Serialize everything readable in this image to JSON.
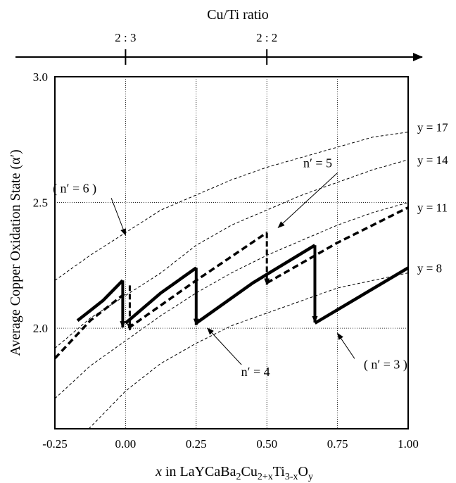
{
  "top_axis": {
    "title": "Cu/Ti ratio",
    "ticks": [
      {
        "x": 0.0,
        "label": "2 : 3"
      },
      {
        "x": 0.5,
        "label": "2 : 2"
      }
    ]
  },
  "chart_data": {
    "type": "line",
    "title": "",
    "ylabel": "Average Copper Oxidation State (α′)",
    "xlabel_parts": {
      "x": "x",
      "in": " in LaYCaBa",
      "s1": "2",
      "cu": "Cu",
      "s2": "2+x",
      "ti": "Ti",
      "s3": "3-x",
      "o": "O",
      "s4": "y"
    },
    "xlim": [
      -0.25,
      1.0
    ],
    "ylim": [
      1.6,
      3.0
    ],
    "x_ticks": [
      -0.25,
      0.0,
      0.25,
      0.5,
      0.75,
      1.0
    ],
    "x_tick_labels": [
      "-0.25",
      "0.00",
      "0.25",
      "0.50",
      "0.75",
      "1.00"
    ],
    "y_ticks": [
      2.0,
      2.5,
      3.0
    ],
    "y_tick_labels": [
      "2.0",
      "2.5",
      "3.0"
    ],
    "grid": true,
    "series": [
      {
        "name": "y = 17",
        "style": "thin-dashed",
        "x": [
          -0.25,
          -0.125,
          0.0,
          0.125,
          0.25,
          0.375,
          0.5,
          0.625,
          0.75,
          0.875,
          1.0
        ],
        "y": [
          2.19,
          2.29,
          2.38,
          2.47,
          2.53,
          2.59,
          2.64,
          2.68,
          2.72,
          2.76,
          2.78
        ]
      },
      {
        "name": "y = 14",
        "style": "thin-dashed",
        "x": [
          -0.25,
          -0.125,
          0.0,
          0.125,
          0.25,
          0.375,
          0.5,
          0.625,
          0.75,
          0.875,
          1.0
        ],
        "y": [
          1.92,
          2.04,
          2.13,
          2.22,
          2.33,
          2.41,
          2.47,
          2.53,
          2.58,
          2.63,
          2.67
        ]
      },
      {
        "name": "y = 11",
        "style": "thin-dashed",
        "x": [
          -0.25,
          -0.125,
          0.0,
          0.125,
          0.25,
          0.375,
          0.5,
          0.625,
          0.75,
          0.875,
          1.0
        ],
        "y": [
          1.72,
          1.85,
          1.95,
          2.05,
          2.14,
          2.22,
          2.29,
          2.35,
          2.41,
          2.46,
          2.5
        ]
      },
      {
        "name": "y = 8",
        "style": "thin-dashed",
        "x": [
          -0.13,
          0.0,
          0.125,
          0.25,
          0.375,
          0.5,
          0.625,
          0.75,
          0.875,
          1.0
        ],
        "y": [
          1.6,
          1.75,
          1.86,
          1.94,
          2.01,
          2.06,
          2.11,
          2.16,
          2.19,
          2.22
        ]
      },
      {
        "name": "",
        "style": "thick-solid",
        "x": [
          -0.17,
          -0.08,
          -0.01
        ],
        "y": [
          2.03,
          2.11,
          2.19
        ]
      },
      {
        "name": "",
        "style": "thick-solid",
        "x": [
          0.0,
          0.125,
          0.25
        ],
        "y": [
          2.02,
          2.14,
          2.24
        ]
      },
      {
        "name": "",
        "style": "thick-solid",
        "x": [
          0.25,
          0.45,
          0.67
        ],
        "y": [
          2.02,
          2.18,
          2.33
        ]
      },
      {
        "name": "",
        "style": "thick-solid",
        "x": [
          0.67,
          0.85,
          1.0
        ],
        "y": [
          2.02,
          2.14,
          2.24
        ]
      },
      {
        "name": "",
        "style": "thick-dashed",
        "x": [
          -0.25,
          -0.125,
          0.0
        ],
        "y": [
          1.88,
          2.03,
          2.14
        ]
      },
      {
        "name": "",
        "style": "thick-dashed",
        "x": [
          0.01,
          0.25,
          0.5
        ],
        "y": [
          2.0,
          2.19,
          2.38
        ]
      },
      {
        "name": "",
        "style": "thick-dashed",
        "x": [
          0.5,
          0.75,
          1.0
        ],
        "y": [
          2.18,
          2.34,
          2.48
        ]
      }
    ],
    "drops": [
      {
        "x": -0.01,
        "y_from": 2.19,
        "y_to": 2.0,
        "style": "solid"
      },
      {
        "x": 0.25,
        "y_from": 2.24,
        "y_to": 2.01,
        "style": "solid"
      },
      {
        "x": 0.67,
        "y_from": 2.33,
        "y_to": 2.02,
        "style": "solid"
      },
      {
        "x": 0.015,
        "y_from": 2.17,
        "y_to": 1.99,
        "style": "dashed"
      },
      {
        "x": 0.5,
        "y_from": 2.38,
        "y_to": 2.17,
        "style": "dashed"
      }
    ],
    "annotations": [
      {
        "id": "n5",
        "text": "n′ = 5",
        "at": [
          0.68,
          2.64
        ],
        "arrow_to": [
          0.54,
          2.4
        ]
      },
      {
        "id": "n6",
        "text": "( n′ = 6 )",
        "at": [
          -0.18,
          2.54
        ],
        "arrow_to": [
          0.0,
          2.37
        ]
      },
      {
        "id": "n4",
        "text": "n′ = 4",
        "at": [
          0.46,
          1.81
        ],
        "arrow_to": [
          0.29,
          2.0
        ]
      },
      {
        "id": "n3",
        "text": "( n′ = 3 )",
        "at": [
          0.92,
          1.84
        ],
        "arrow_to": [
          0.75,
          1.98
        ]
      }
    ]
  },
  "colors": {
    "line": "#000000",
    "grid": "#000000",
    "background": "#ffffff"
  }
}
